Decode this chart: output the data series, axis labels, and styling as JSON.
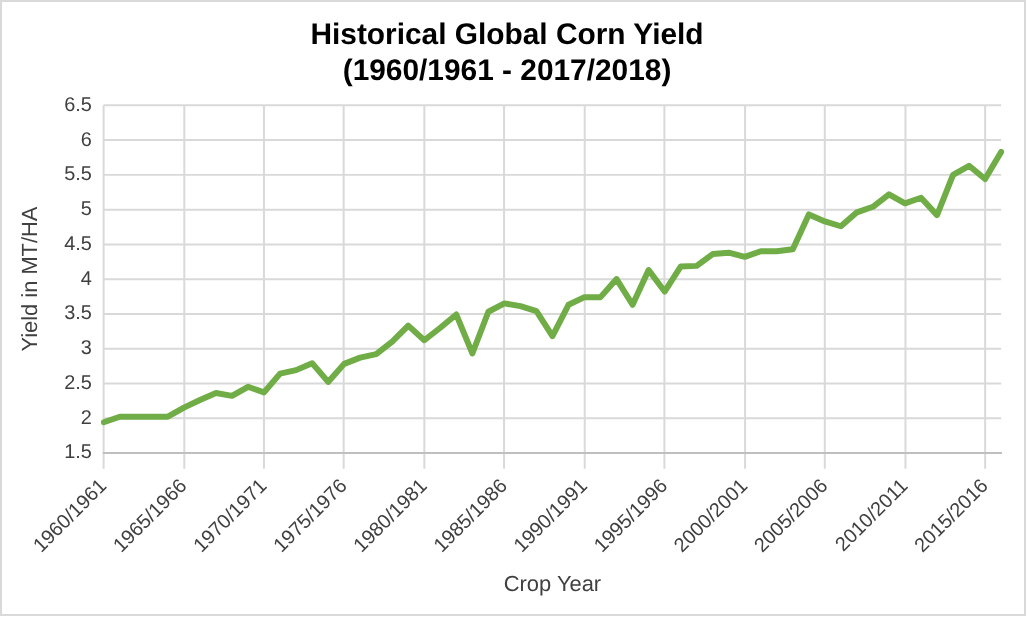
{
  "chart_data": {
    "type": "line",
    "title": "Historical Global Corn Yield\n(1960/1961 - 2017/2018)",
    "xlabel": "Crop Year",
    "ylabel": "Yield in MT/HA",
    "categories": [
      "1960/1961",
      null,
      null,
      null,
      null,
      "1965/1966",
      null,
      null,
      null,
      null,
      "1970/1971",
      null,
      null,
      null,
      null,
      "1975/1976",
      null,
      null,
      null,
      null,
      "1980/1981",
      null,
      null,
      null,
      null,
      "1985/1986",
      null,
      null,
      null,
      null,
      "1990/1991",
      null,
      null,
      null,
      null,
      "1995/1996",
      null,
      null,
      null,
      null,
      "2000/2001",
      null,
      null,
      null,
      null,
      "2005/2006",
      null,
      null,
      null,
      null,
      "2010/2011",
      null,
      null,
      null,
      null,
      "2015/2016",
      null
    ],
    "series": [
      {
        "color": "#70ad47",
        "values": [
          1.94,
          2.02,
          2.02,
          2.02,
          2.02,
          2.15,
          2.26,
          2.36,
          2.32,
          2.45,
          2.37,
          2.64,
          2.69,
          2.79,
          2.52,
          2.78,
          2.87,
          2.92,
          3.1,
          3.33,
          3.12,
          3.3,
          3.49,
          2.93,
          3.53,
          3.65,
          3.61,
          3.54,
          3.18,
          3.63,
          3.74,
          3.74,
          4.0,
          3.63,
          4.13,
          3.82,
          4.18,
          4.19,
          4.36,
          4.38,
          4.32,
          4.4,
          4.4,
          4.43,
          4.93,
          4.83,
          4.76,
          4.96,
          5.04,
          5.22,
          5.09,
          5.17,
          4.92,
          5.5,
          5.63,
          5.44,
          5.83
        ]
      }
    ],
    "ylim": [
      1.5,
      6.5
    ],
    "yticks": [
      1.5,
      2,
      2.5,
      3,
      3.5,
      4,
      4.5,
      5,
      5.5,
      6,
      6.5
    ],
    "grid": true,
    "legend": false,
    "marker": "none",
    "line_style": "solid"
  }
}
